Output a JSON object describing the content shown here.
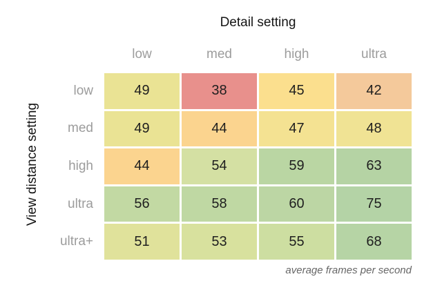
{
  "colors": {
    "background": "#ffffff",
    "title_text": "#141414",
    "axis_label_text": "#9c9c9c",
    "cell_text": "#1f1f1f",
    "footnote_text": "#666666"
  },
  "chart_data": {
    "type": "heatmap",
    "title": "Detail setting",
    "ylabel": "View distance setting",
    "footnote": "average frames per second",
    "columns": [
      "low",
      "med",
      "high",
      "ultra"
    ],
    "rows": [
      "low",
      "med",
      "high",
      "ultra",
      "ultra+"
    ],
    "values": [
      [
        49,
        38,
        45,
        42
      ],
      [
        49,
        44,
        47,
        48
      ],
      [
        44,
        54,
        59,
        63
      ],
      [
        56,
        58,
        60,
        75
      ],
      [
        51,
        53,
        55,
        68
      ]
    ],
    "cell_colors": [
      [
        "#eae394",
        "#e8908c",
        "#fbdf8e",
        "#f4c99b"
      ],
      [
        "#eae394",
        "#fbd48f",
        "#f4e292",
        "#f0e394"
      ],
      [
        "#fbd48f",
        "#d4e0a3",
        "#bad6a3",
        "#b5d3a4"
      ],
      [
        "#c2d9a3",
        "#bfd8a3",
        "#bcd6a4",
        "#b4d3a6"
      ],
      [
        "#e0e29b",
        "#d8e19e",
        "#cddea1",
        "#b6d4a5"
      ]
    ],
    "min_value": 38,
    "max_value": 75,
    "colormap": "red-yellow-green",
    "legend_position": "none",
    "grid": false
  }
}
